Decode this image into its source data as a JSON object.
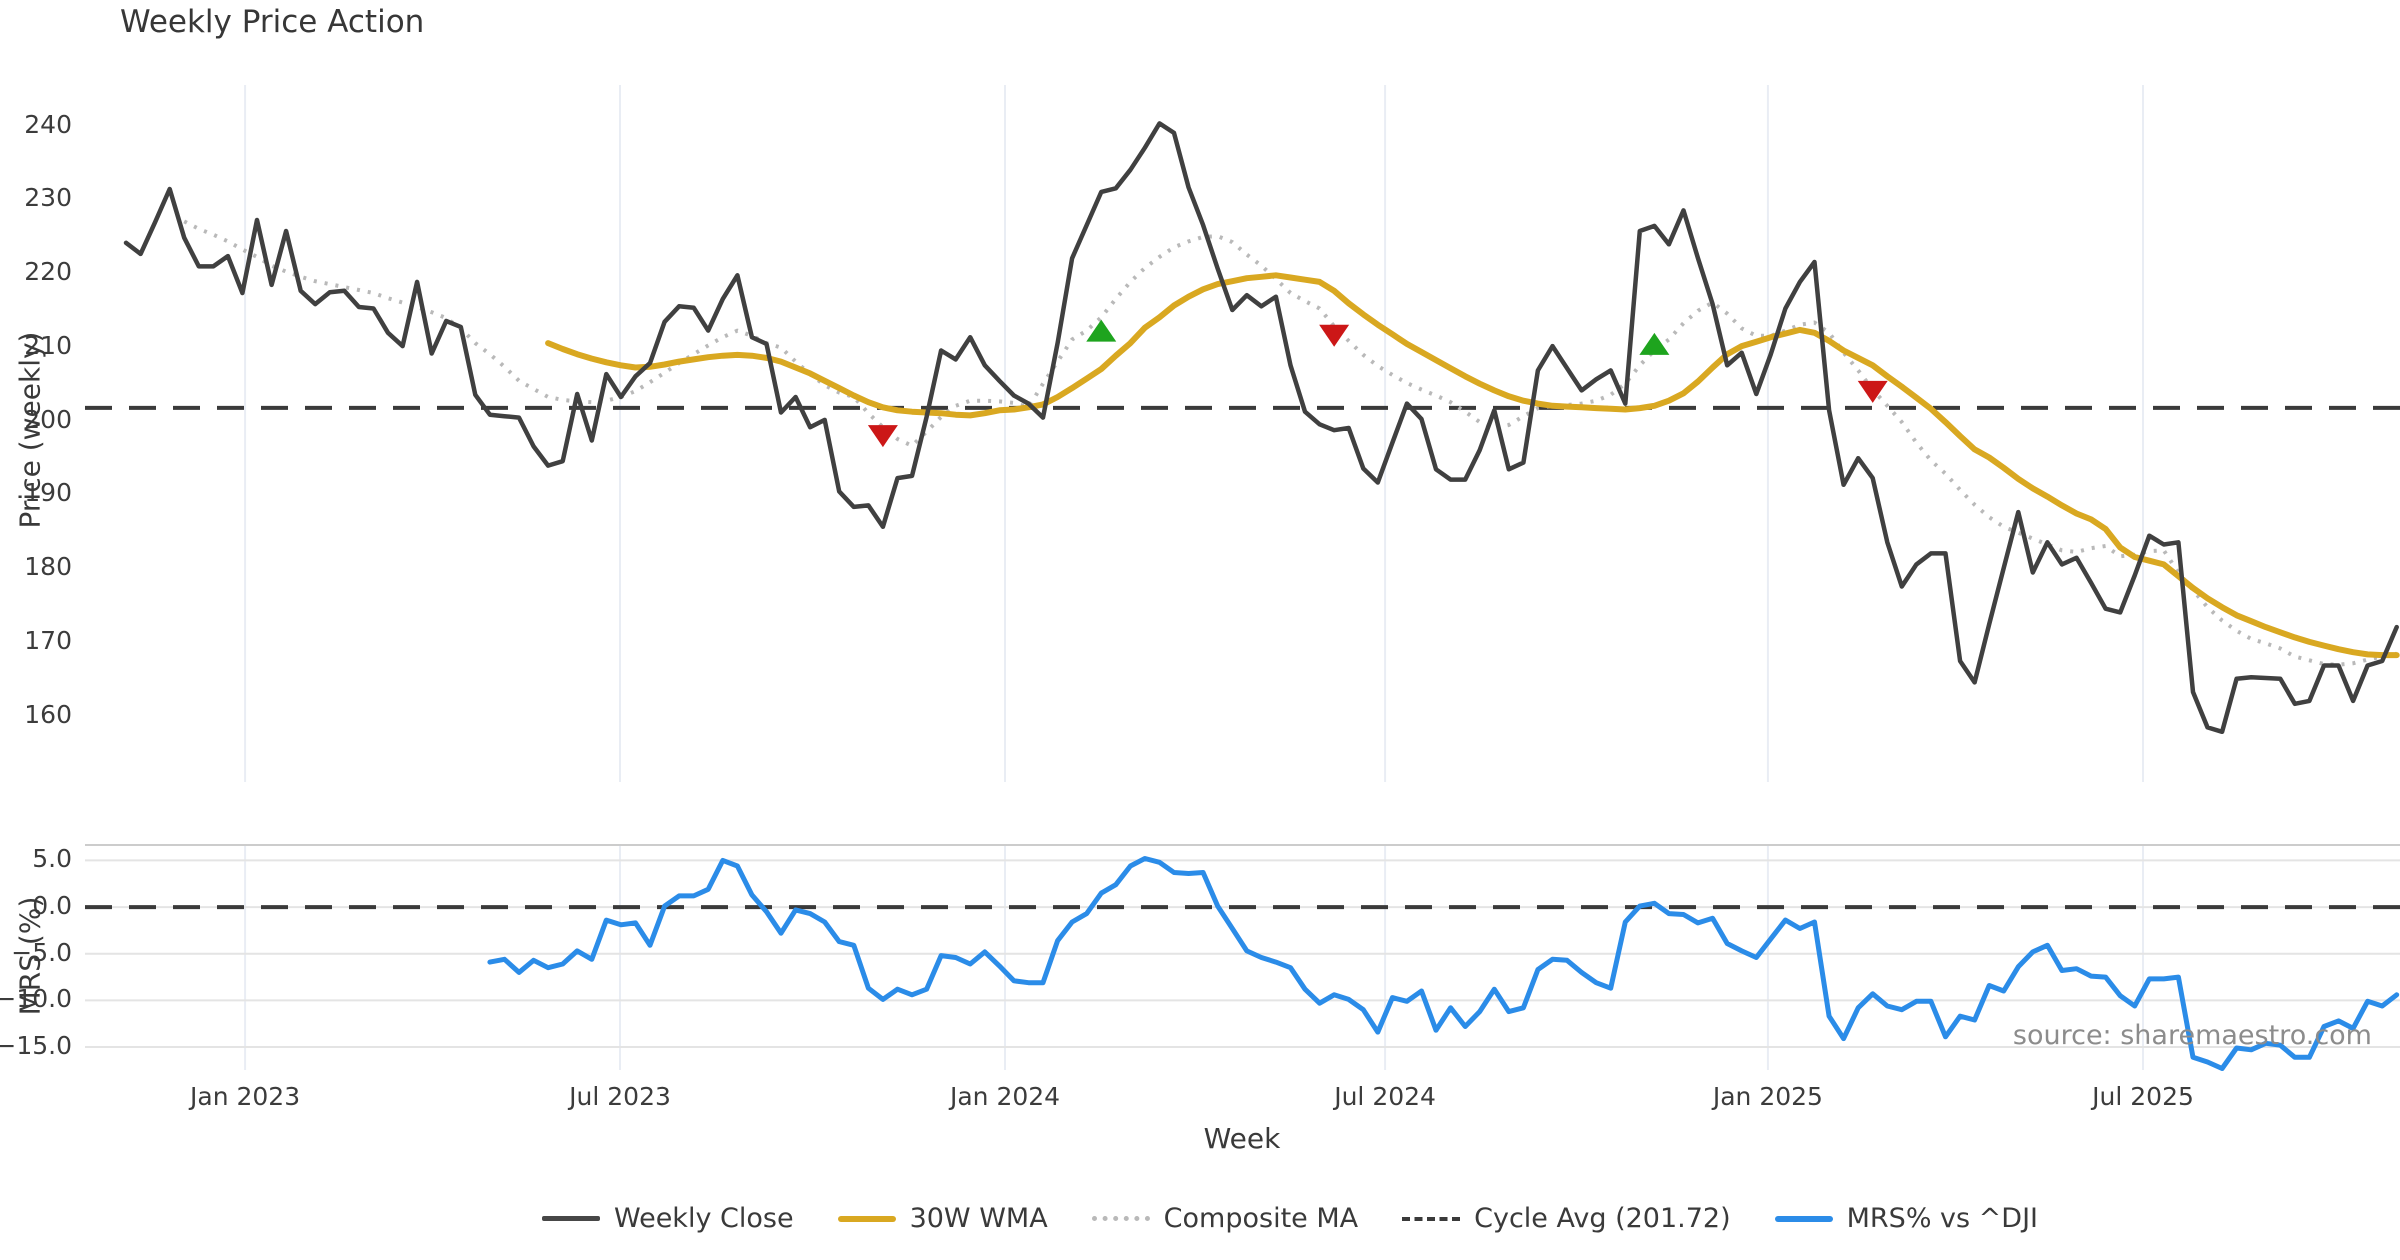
{
  "source_text": "source: sharemaestro.com",
  "colors": {
    "weekly_close": "#404040",
    "wma": "#d9a821",
    "composite": "#b9b9b9",
    "cycle_avg": "#3a3a3a",
    "mrs": "#2b8ce8",
    "buy_marker": "#1ea41e",
    "sell_marker": "#cc1717"
  },
  "legend": {
    "items": [
      {
        "label": "Weekly Close",
        "swatch": "solid-dark-line"
      },
      {
        "label": "30W WMA",
        "swatch": "solid-gold-line"
      },
      {
        "label": "Composite MA",
        "swatch": "dotted-grey-line"
      },
      {
        "label": "Cycle Avg (201.72)",
        "swatch": "dashed-dark-line"
      },
      {
        "label": "MRS% vs ^DJI",
        "swatch": "solid-blue-line"
      }
    ]
  },
  "chart_data": [
    {
      "type": "line",
      "title": "Weekly Price Action",
      "ylabel": "Price (weekly)",
      "ylim": [
        151.0,
        245.5
      ],
      "grid": "vertical-only",
      "yticks": [
        240,
        230,
        220,
        210,
        200,
        190,
        180,
        170,
        160
      ],
      "x_axis": {
        "xlabel": "Week",
        "unit": "weeks",
        "total_weeks": 157,
        "ticks": [
          {
            "label": "Jan 2023",
            "week": 8.18
          },
          {
            "label": "Jul 2023",
            "week": 33.94
          },
          {
            "label": "Jan 2024",
            "week": 60.39
          },
          {
            "label": "Jul 2024",
            "week": 86.5
          },
          {
            "label": "Jan 2025",
            "week": 112.8
          },
          {
            "label": "Jul 2025",
            "week": 138.57
          }
        ]
      },
      "cycle_avg": 201.72,
      "markers": [
        {
          "type": "sell",
          "week": 52,
          "value": 197.9
        },
        {
          "type": "buy",
          "week": 67,
          "value": 212.2
        },
        {
          "type": "sell",
          "week": 83,
          "value": 211.5
        },
        {
          "type": "buy",
          "week": 105,
          "value": 210.4
        },
        {
          "type": "sell",
          "week": 120,
          "value": 203.9
        }
      ],
      "series": [
        {
          "name": "Weekly Close",
          "style": "solid",
          "start_week": 0,
          "values": [
            224.1,
            222.6,
            226.9,
            231.4,
            224.8,
            220.9,
            220.9,
            222.3,
            217.3,
            227.2,
            218.4,
            225.7,
            217.6,
            215.8,
            217.4,
            217.6,
            215.4,
            215.2,
            211.9,
            210.1,
            218.8,
            209.1,
            213.5,
            212.7,
            203.5,
            200.8,
            200.6,
            200.4,
            196.5,
            193.9,
            194.5,
            203.6,
            197.3,
            206.3,
            203.2,
            206.0,
            207.8,
            213.4,
            215.5,
            215.3,
            212.2,
            216.5,
            219.7,
            211.3,
            210.4,
            201.1,
            203.2,
            199.1,
            200.1,
            190.4,
            188.3,
            188.5,
            185.6,
            192.2,
            192.5,
            200.5,
            209.5,
            208.3,
            211.3,
            207.5,
            205.4,
            203.4,
            202.3,
            200.4,
            210.5,
            222.0,
            226.5,
            231.0,
            231.5,
            234.0,
            237.0,
            240.3,
            239.0,
            231.6,
            226.5,
            220.6,
            215.0,
            217.0,
            215.5,
            216.8,
            207.5,
            201.2,
            199.5,
            198.7,
            199.0,
            193.5,
            191.6,
            197.0,
            202.3,
            200.2,
            193.4,
            192.0,
            192.0,
            196.0,
            201.4,
            193.4,
            194.3,
            206.8,
            210.1,
            207.1,
            204.1,
            205.6,
            206.8,
            202.3,
            225.7,
            226.4,
            223.9,
            228.5,
            222.0,
            215.8,
            207.5,
            209.2,
            203.6,
            209.0,
            215.2,
            218.8,
            221.5,
            201.4,
            191.3,
            194.9,
            192.2,
            183.5,
            177.5,
            180.5,
            182.0,
            182.0,
            167.4,
            164.5,
            172.4,
            180.0,
            187.6,
            179.4,
            183.5,
            180.5,
            181.4,
            178.0,
            174.5,
            174.0,
            179.0,
            184.4,
            183.2,
            183.5,
            163.2,
            158.4,
            157.8,
            165.0,
            165.2,
            165.1,
            165.0,
            161.6,
            162.0,
            166.8,
            166.8,
            162.0,
            166.8,
            167.4,
            172.0
          ]
        },
        {
          "name": "30W WMA",
          "style": "solid",
          "start_week": 29,
          "values": [
            210.5,
            209.7,
            209.0,
            208.4,
            207.9,
            207.5,
            207.2,
            207.3,
            207.6,
            208.0,
            208.3,
            208.6,
            208.8,
            208.9,
            208.8,
            208.5,
            208.0,
            207.2,
            206.4,
            205.4,
            204.4,
            203.4,
            202.5,
            201.8,
            201.4,
            201.2,
            201.1,
            201.0,
            200.8,
            200.7,
            201.0,
            201.4,
            201.5,
            201.8,
            202.2,
            203.2,
            204.4,
            205.7,
            207.0,
            208.8,
            210.5,
            212.6,
            214.0,
            215.6,
            216.8,
            217.8,
            218.5,
            218.9,
            219.3,
            219.5,
            219.7,
            219.4,
            219.1,
            218.8,
            217.6,
            215.9,
            214.4,
            213.0,
            211.7,
            210.4,
            209.3,
            208.2,
            207.1,
            206.0,
            205.0,
            204.1,
            203.3,
            202.7,
            202.3,
            202.0,
            201.9,
            201.8,
            201.7,
            201.6,
            201.5,
            201.7,
            202.0,
            202.7,
            203.7,
            205.3,
            207.2,
            209.0,
            210.1,
            210.7,
            211.3,
            211.8,
            212.3,
            211.9,
            210.8,
            209.5,
            208.5,
            207.5,
            206.0,
            204.6,
            203.1,
            201.6,
            199.8,
            197.9,
            196.1,
            195.0,
            193.6,
            192.1,
            190.8,
            189.7,
            188.5,
            187.4,
            186.6,
            185.3,
            182.8,
            181.5,
            181.0,
            180.5,
            178.9,
            177.3,
            175.9,
            174.7,
            173.6,
            172.8,
            172.0,
            171.3,
            170.6,
            170.0,
            169.5,
            169.0,
            168.6,
            168.3,
            168.2,
            168.2
          ]
        },
        {
          "name": "Composite MA",
          "style": "dotted",
          "start_week": 4,
          "values": [
            227.0,
            226.0,
            225.2,
            224.3,
            223.2,
            222.2,
            221.0,
            220.2,
            219.5,
            218.9,
            218.5,
            218.1,
            217.7,
            217.3,
            216.6,
            216.0,
            215.4,
            214.7,
            213.9,
            212.5,
            210.5,
            209.0,
            207.3,
            205.4,
            204.3,
            203.2,
            202.8,
            202.6,
            202.5,
            202.7,
            203.2,
            204.0,
            205.2,
            206.5,
            207.8,
            209.0,
            210.2,
            211.3,
            212.2,
            211.5,
            210.5,
            209.9,
            208.0,
            206.3,
            204.8,
            203.8,
            203.2,
            201.0,
            199.1,
            197.5,
            196.6,
            198.5,
            200.5,
            202.0,
            202.7,
            202.7,
            202.6,
            202.4,
            201.8,
            205.0,
            208.0,
            211.0,
            212.2,
            214.0,
            216.5,
            218.8,
            220.7,
            222.2,
            223.5,
            224.3,
            224.9,
            225.0,
            224.2,
            222.5,
            221.0,
            219.2,
            217.3,
            216.2,
            215.2,
            212.8,
            210.8,
            208.9,
            207.4,
            206.2,
            205.1,
            204.2,
            203.4,
            202.5,
            201.2,
            199.8,
            199.0,
            199.4,
            200.6,
            201.7,
            202.0,
            202.1,
            202.3,
            202.7,
            203.5,
            205.0,
            207.5,
            209.5,
            211.0,
            213.2,
            214.9,
            216.0,
            214.5,
            212.5,
            211.5,
            211.5,
            212.2,
            213.0,
            213.3,
            211.9,
            209.2,
            206.8,
            204.2,
            202.0,
            199.8,
            197.0,
            194.6,
            192.8,
            190.6,
            188.6,
            186.9,
            185.6,
            184.8,
            184.0,
            183.2,
            182.4,
            182.2,
            182.7,
            183.0,
            181.6,
            181.8,
            182.3,
            182.4,
            179.4,
            177.0,
            174.7,
            172.9,
            171.5,
            170.4,
            169.8,
            169.1,
            168.0,
            167.5,
            167.0,
            166.9,
            167.1,
            167.6,
            168.0,
            168.4
          ]
        }
      ]
    },
    {
      "type": "line",
      "ylabel": "MRS (%)",
      "ylim": [
        -17.46,
        6.65
      ],
      "grid": "both",
      "yticks": [
        {
          "label": "5.0",
          "value": 5
        },
        {
          "label": "0.0",
          "value": 0
        },
        {
          "label": "−5.0",
          "value": -5
        },
        {
          "label": "−10.0",
          "value": -10
        },
        {
          "label": "−15.0",
          "value": -15
        }
      ],
      "zero_line": 0.0,
      "series": [
        {
          "name": "MRS% vs ^DJI",
          "style": "solid",
          "start_week": 25,
          "values": [
            -5.9,
            -5.6,
            -7.0,
            -5.7,
            -6.5,
            -6.1,
            -4.7,
            -5.6,
            -1.4,
            -1.9,
            -1.7,
            -4.1,
            0.1,
            1.2,
            1.2,
            1.9,
            5.0,
            4.4,
            1.3,
            -0.5,
            -2.8,
            -0.3,
            -0.7,
            -1.6,
            -3.7,
            -4.1,
            -8.7,
            -9.9,
            -8.8,
            -9.4,
            -8.8,
            -5.2,
            -5.4,
            -6.1,
            -4.8,
            -6.3,
            -7.9,
            -8.1,
            -8.1,
            -3.6,
            -1.6,
            -0.7,
            1.5,
            2.4,
            4.4,
            5.2,
            4.8,
            3.7,
            3.6,
            3.7,
            0.1,
            -2.3,
            -4.7,
            -5.4,
            -5.9,
            -6.5,
            -8.8,
            -10.3,
            -9.4,
            -9.9,
            -11.0,
            -13.4,
            -9.7,
            -10.1,
            -9.0,
            -13.2,
            -10.8,
            -12.8,
            -11.2,
            -8.8,
            -11.2,
            -10.8,
            -6.7,
            -5.6,
            -5.7,
            -7.0,
            -8.1,
            -8.7,
            -1.6,
            0.1,
            0.4,
            -0.7,
            -0.8,
            -1.7,
            -1.2,
            -3.9,
            -4.7,
            -5.4,
            -3.4,
            -1.4,
            -2.3,
            -1.6,
            -11.7,
            -14.1,
            -10.8,
            -9.3,
            -10.6,
            -11.0,
            -10.1,
            -10.1,
            -13.9,
            -11.7,
            -12.1,
            -8.4,
            -9.0,
            -6.4,
            -4.8,
            -4.1,
            -6.8,
            -6.6,
            -7.4,
            -7.5,
            -9.5,
            -10.6,
            -7.7,
            -7.7,
            -7.5,
            -16.1,
            -16.6,
            -17.3,
            -15.1,
            -15.3,
            -14.6,
            -14.8,
            -16.1,
            -16.1,
            -12.8,
            -12.2,
            -13.0,
            -10.1,
            -10.6,
            -9.4
          ]
        }
      ]
    }
  ]
}
